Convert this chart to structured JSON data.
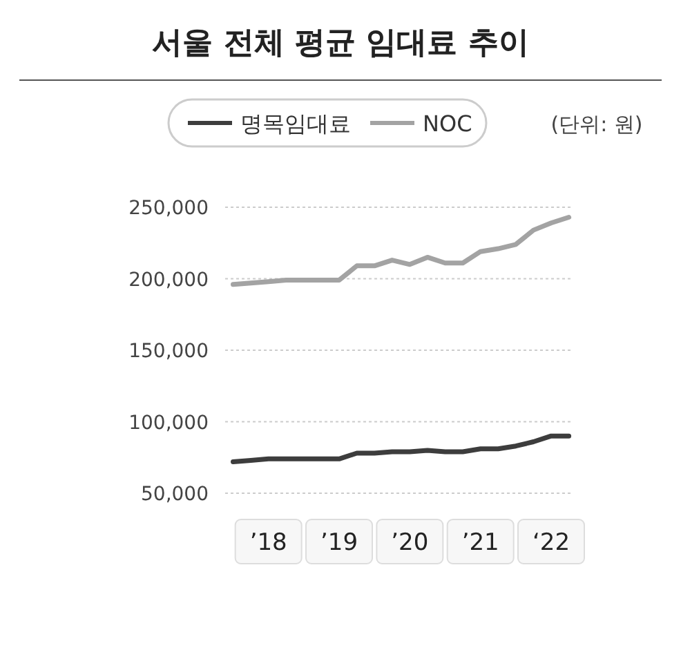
{
  "chart_data": {
    "type": "line",
    "title": "서울 전체 평균 임대료 추이",
    "annotations": [
      "(단위: 원)"
    ],
    "categories": [
      null,
      null,
      "’18",
      null,
      null,
      null,
      "’19",
      null,
      null,
      null,
      "’20",
      null,
      null,
      null,
      "’21",
      null,
      null,
      null,
      "‘22",
      null
    ],
    "series": [
      {
        "name": "명목임대료",
        "color": "#3d3d3d",
        "values": [
          72000,
          73000,
          74000,
          74000,
          74000,
          74000,
          74000,
          78000,
          78000,
          79000,
          79000,
          80000,
          79000,
          79000,
          81000,
          81000,
          83000,
          86000,
          90000,
          90000
        ]
      },
      {
        "name": "NOC",
        "color": "#a3a3a3",
        "values": [
          196000,
          197000,
          198000,
          199000,
          199000,
          199000,
          199000,
          209000,
          209000,
          213000,
          210000,
          215000,
          211000,
          211000,
          219000,
          221000,
          224000,
          234000,
          239000,
          243000
        ]
      }
    ],
    "ylim": [
      50000,
      250000
    ],
    "yticks": [
      {
        "value": 50000,
        "label": "50,000"
      },
      {
        "value": 100000,
        "label": "100,000"
      },
      {
        "value": 150000,
        "label": "150,000"
      },
      {
        "value": 200000,
        "label": "200,000"
      },
      {
        "value": 250000,
        "label": "250,000"
      }
    ],
    "grid": "y",
    "legend": "top",
    "marker": "none",
    "line_style": "solid"
  }
}
